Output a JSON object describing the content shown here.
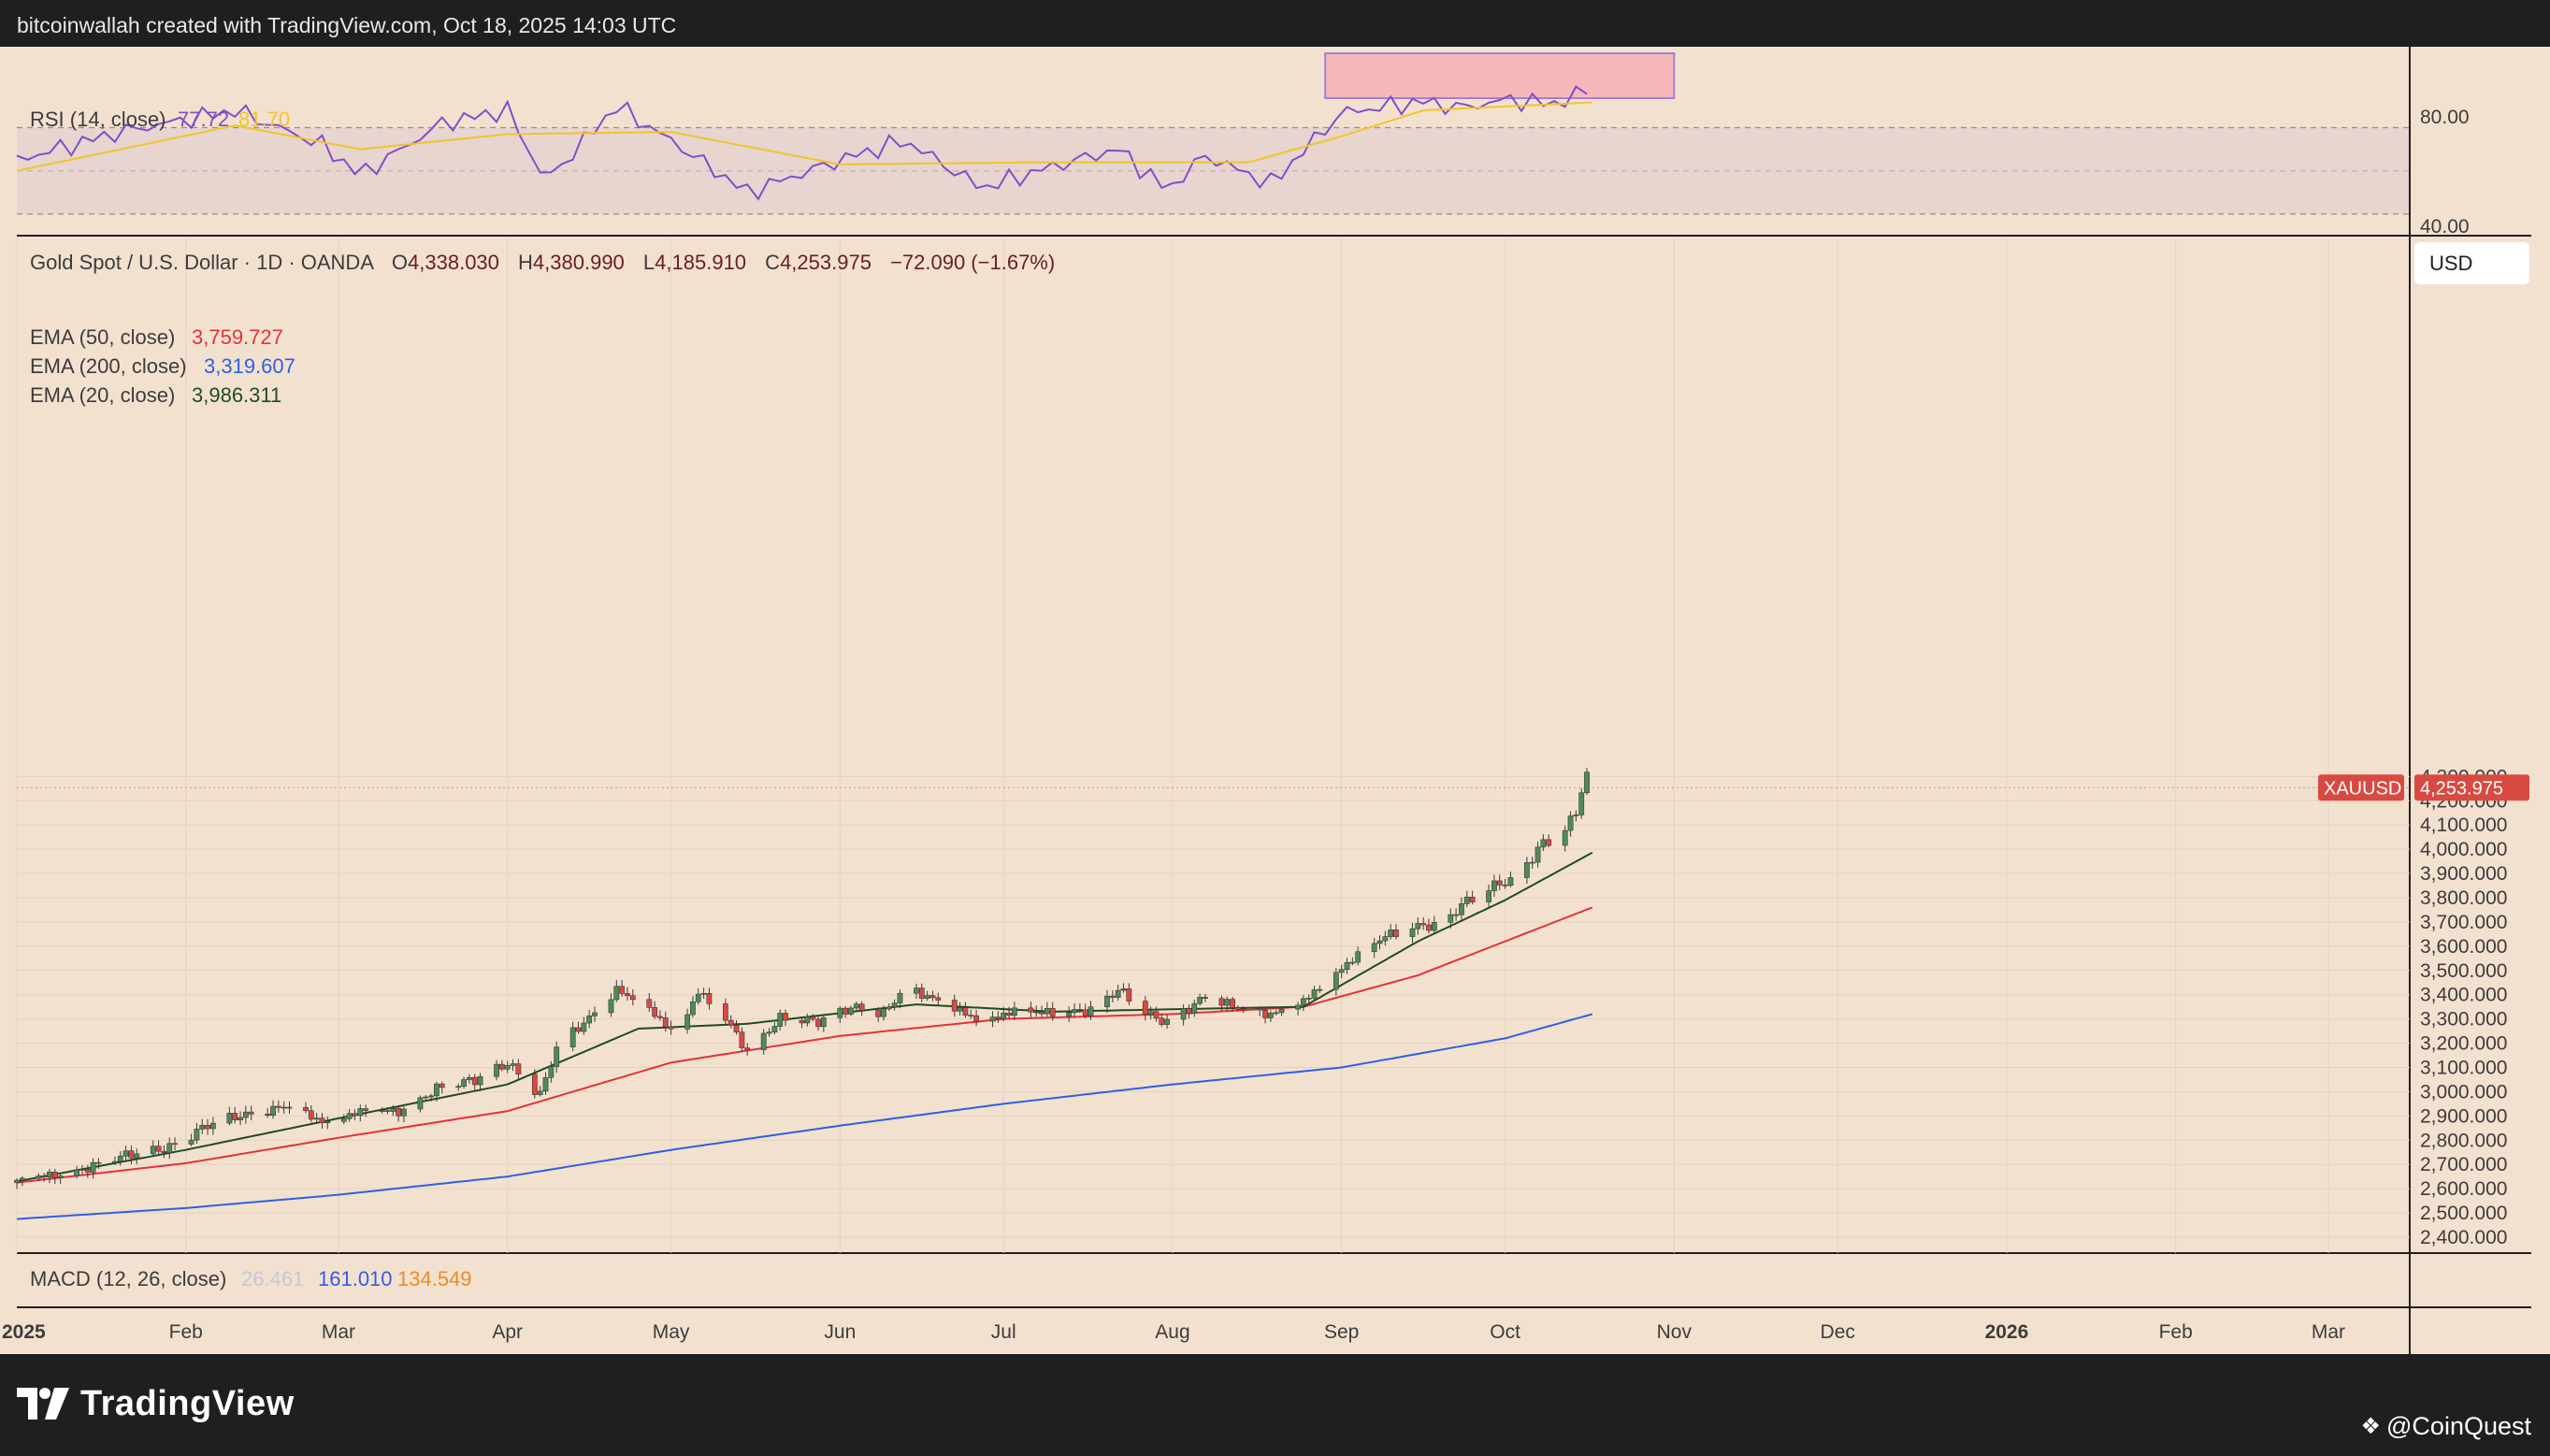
{
  "header": {
    "attribution": "bitcoinwallah created with TradingView.com, Oct 18, 2025 14:03 UTC"
  },
  "footer": {
    "brand": "TradingView",
    "watermark": "@CoinQuest",
    "watermark_icon": "diamond-cluster-icon"
  },
  "colors": {
    "pane_bg": "#f3e1d0",
    "rsi_band": "#e8d5d0",
    "up": "#4f8a5a",
    "down": "#d84a41",
    "ema50": "#e5313a",
    "ema200": "#2f5fe6",
    "ema20": "#1e4d1e",
    "rsi": "#7f4fc9",
    "rsi_ma": "#f0c52a",
    "macd_hist": "#c4c8d6",
    "macd": "#2f5fe6",
    "signal": "#f08a24"
  },
  "rsi_pane": {
    "label": "RSI (14, close)",
    "value": "77.72",
    "ma_value": "81.70",
    "ticks": [
      "80.00",
      "40.00"
    ]
  },
  "price_pane": {
    "symbol_line": "Gold Spot / U.S. Dollar · 1D · OANDA",
    "ohlc": [
      {
        "k": "O",
        "v": "4,338.030"
      },
      {
        "k": "H",
        "v": "4,380.990"
      },
      {
        "k": "L",
        "v": "4,185.910"
      },
      {
        "k": "C",
        "v": "4,253.975"
      }
    ],
    "change": "−72.090 (−1.67%)",
    "currency_button": "USD",
    "price_tag_symbol": "XAUUSD",
    "price_tag_value": "4,253.975",
    "ema_legends": [
      {
        "label": "EMA (50, close)",
        "value": "3,759.727",
        "color": "#e5313a"
      },
      {
        "label": "EMA (200, close)",
        "value": "3,319.607",
        "color": "#2f5fe6"
      },
      {
        "label": "EMA (20, close)",
        "value": "3,986.311",
        "color": "#1e4d1e"
      }
    ]
  },
  "macd_pane": {
    "label": "MACD (12, 26, close)",
    "hist": "26.461",
    "macd": "161.010",
    "signal": "134.549"
  },
  "chart_data": {
    "type": "candlestick",
    "title": "Gold Spot / U.S. Dollar · 1D · OANDA",
    "xlabel": "",
    "ylabel": "USD",
    "ylim": [
      2400,
      4400
    ],
    "grid": true,
    "x_ticks": [
      "2025",
      "Feb",
      "Mar",
      "Apr",
      "May",
      "Jun",
      "Jul",
      "Aug",
      "Sep",
      "Oct",
      "Nov",
      "Dec",
      "2026",
      "Feb",
      "Mar"
    ],
    "y_ticks": [
      "4,300.000",
      "4,200.000",
      "4,100.000",
      "4,000.000",
      "3,900.000",
      "3,800.000",
      "3,700.000",
      "3,600.000",
      "3,500.000",
      "3,400.000",
      "3,300.000",
      "3,200.000",
      "3,100.000",
      "3,000.000",
      "2,900.000",
      "2,800.000",
      "2,700.000",
      "2,600.000",
      "2,500.000",
      "2,400.000"
    ],
    "price_path": [
      [
        "2025-01-01",
        2625
      ],
      [
        "2025-01-08",
        2660
      ],
      [
        "2025-01-15",
        2690
      ],
      [
        "2025-01-22",
        2745
      ],
      [
        "2025-01-29",
        2770
      ],
      [
        "2025-02-05",
        2860
      ],
      [
        "2025-02-12",
        2910
      ],
      [
        "2025-02-19",
        2935
      ],
      [
        "2025-02-26",
        2880
      ],
      [
        "2025-03-05",
        2915
      ],
      [
        "2025-03-12",
        2920
      ],
      [
        "2025-03-19",
        3010
      ],
      [
        "2025-03-26",
        3050
      ],
      [
        "2025-04-01",
        3120
      ],
      [
        "2025-04-07",
        2985
      ],
      [
        "2025-04-10",
        3180
      ],
      [
        "2025-04-17",
        3330
      ],
      [
        "2025-04-21",
        3420
      ],
      [
        "2025-04-28",
        3320
      ],
      [
        "2025-05-02",
        3240
      ],
      [
        "2025-05-06",
        3410
      ],
      [
        "2025-05-12",
        3270
      ],
      [
        "2025-05-15",
        3170
      ],
      [
        "2025-05-21",
        3300
      ],
      [
        "2025-05-28",
        3290
      ],
      [
        "2025-06-03",
        3350
      ],
      [
        "2025-06-09",
        3320
      ],
      [
        "2025-06-13",
        3430
      ],
      [
        "2025-06-20",
        3370
      ],
      [
        "2025-06-27",
        3280
      ],
      [
        "2025-07-03",
        3340
      ],
      [
        "2025-07-10",
        3320
      ],
      [
        "2025-07-17",
        3340
      ],
      [
        "2025-07-22",
        3420
      ],
      [
        "2025-07-28",
        3310
      ],
      [
        "2025-07-31",
        3290
      ],
      [
        "2025-08-07",
        3390
      ],
      [
        "2025-08-12",
        3350
      ],
      [
        "2025-08-19",
        3320
      ],
      [
        "2025-08-25",
        3370
      ],
      [
        "2025-08-29",
        3450
      ],
      [
        "2025-09-03",
        3550
      ],
      [
        "2025-09-09",
        3640
      ],
      [
        "2025-09-16",
        3690
      ],
      [
        "2025-09-19",
        3680
      ],
      [
        "2025-09-23",
        3770
      ],
      [
        "2025-09-30",
        3860
      ],
      [
        "2025-10-03",
        3880
      ],
      [
        "2025-10-08",
        4030
      ],
      [
        "2025-10-10",
        4010
      ],
      [
        "2025-10-14",
        4150
      ],
      [
        "2025-10-16",
        4320
      ],
      [
        "2025-10-17",
        4254
      ]
    ],
    "series": [
      {
        "name": "EMA (50, close)",
        "values": [
          [
            "2025-01-01",
            2625
          ],
          [
            "2025-02-01",
            2705
          ],
          [
            "2025-03-01",
            2810
          ],
          [
            "2025-04-01",
            2920
          ],
          [
            "2025-05-01",
            3120
          ],
          [
            "2025-06-01",
            3230
          ],
          [
            "2025-07-01",
            3300
          ],
          [
            "2025-08-01",
            3320
          ],
          [
            "2025-08-25",
            3350
          ],
          [
            "2025-09-15",
            3480
          ],
          [
            "2025-10-01",
            3620
          ],
          [
            "2025-10-17",
            3760
          ]
        ]
      },
      {
        "name": "EMA (200, close)",
        "values": [
          [
            "2025-01-01",
            2475
          ],
          [
            "2025-02-01",
            2520
          ],
          [
            "2025-03-01",
            2575
          ],
          [
            "2025-04-01",
            2650
          ],
          [
            "2025-05-01",
            2760
          ],
          [
            "2025-06-01",
            2860
          ],
          [
            "2025-07-01",
            2950
          ],
          [
            "2025-08-01",
            3030
          ],
          [
            "2025-09-01",
            3100
          ],
          [
            "2025-10-01",
            3220
          ],
          [
            "2025-10-17",
            3320
          ]
        ]
      },
      {
        "name": "EMA (20, close)",
        "values": [
          [
            "2025-01-01",
            2630
          ],
          [
            "2025-02-01",
            2760
          ],
          [
            "2025-03-01",
            2890
          ],
          [
            "2025-04-01",
            3030
          ],
          [
            "2025-04-25",
            3260
          ],
          [
            "2025-05-15",
            3280
          ],
          [
            "2025-06-15",
            3360
          ],
          [
            "2025-07-10",
            3330
          ],
          [
            "2025-08-01",
            3340
          ],
          [
            "2025-08-25",
            3350
          ],
          [
            "2025-09-15",
            3620
          ],
          [
            "2025-10-01",
            3790
          ],
          [
            "2025-10-17",
            3986
          ]
        ]
      }
    ],
    "rsi": {
      "ylim": [
        20,
        100
      ],
      "levels": [
        70,
        50,
        30
      ],
      "values": [
        [
          "2025-01-01",
          55
        ],
        [
          "2025-01-20",
          68
        ],
        [
          "2025-02-10",
          78
        ],
        [
          "2025-02-26",
          62
        ],
        [
          "2025-03-05",
          48
        ],
        [
          "2025-03-20",
          72
        ],
        [
          "2025-04-01",
          78
        ],
        [
          "2025-04-08",
          45
        ],
        [
          "2025-04-21",
          80
        ],
        [
          "2025-05-01",
          64
        ],
        [
          "2025-05-15",
          40
        ],
        [
          "2025-06-01",
          55
        ],
        [
          "2025-06-13",
          64
        ],
        [
          "2025-06-27",
          42
        ],
        [
          "2025-07-10",
          52
        ],
        [
          "2025-07-22",
          60
        ],
        [
          "2025-07-31",
          41
        ],
        [
          "2025-08-07",
          57
        ],
        [
          "2025-08-19",
          44
        ],
        [
          "2025-09-01",
          77
        ],
        [
          "2025-09-16",
          82
        ],
        [
          "2025-09-23",
          79
        ],
        [
          "2025-10-01",
          83
        ],
        [
          "2025-10-10",
          81
        ],
        [
          "2025-10-16",
          87
        ],
        [
          "2025-10-17",
          77.72
        ]
      ],
      "ma": [
        [
          "2025-01-01",
          50
        ],
        [
          "2025-02-10",
          71
        ],
        [
          "2025-03-05",
          60
        ],
        [
          "2025-04-01",
          67
        ],
        [
          "2025-05-01",
          68
        ],
        [
          "2025-06-01",
          53
        ],
        [
          "2025-07-10",
          54
        ],
        [
          "2025-08-15",
          54
        ],
        [
          "2025-09-01",
          66
        ],
        [
          "2025-09-16",
          78
        ],
        [
          "2025-10-17",
          81.7
        ]
      ]
    },
    "macd": {
      "hist": 26.461,
      "macd": 161.01,
      "signal": 134.549
    }
  }
}
